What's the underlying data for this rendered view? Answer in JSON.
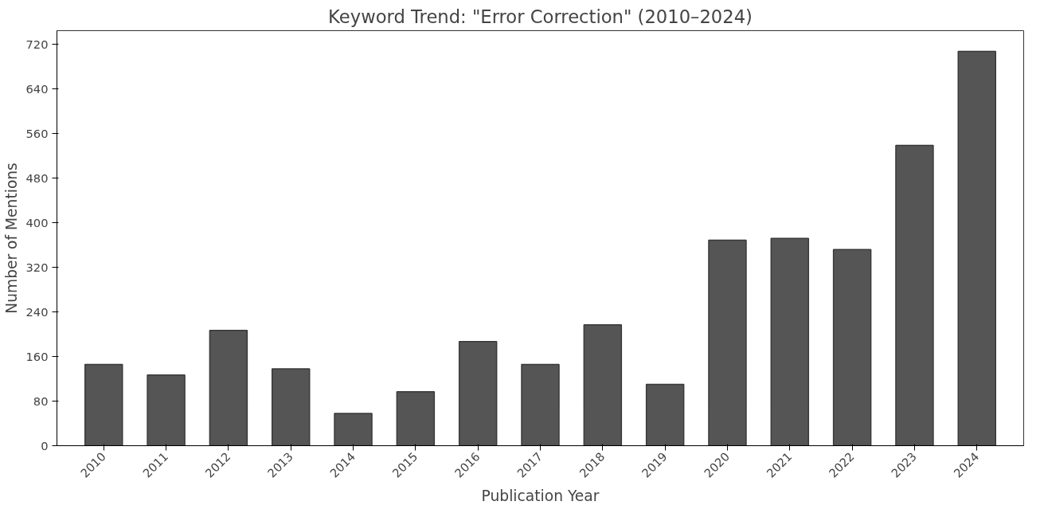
{
  "chart_data": {
    "type": "bar",
    "title": "Keyword Trend: \"Error Correction\" (2010–2024)",
    "xlabel": "Publication Year",
    "ylabel": "Number of Mentions",
    "categories": [
      "2010",
      "2011",
      "2012",
      "2013",
      "2014",
      "2015",
      "2016",
      "2017",
      "2018",
      "2019",
      "2020",
      "2021",
      "2022",
      "2023",
      "2024"
    ],
    "values": [
      146,
      127,
      207,
      138,
      58,
      97,
      187,
      146,
      217,
      110,
      369,
      372,
      352,
      539,
      708
    ],
    "color": "#555555",
    "ylim": [
      0,
      745
    ],
    "yticks": [
      0,
      80,
      160,
      240,
      320,
      400,
      480,
      560,
      640,
      720
    ],
    "grid": false
  }
}
